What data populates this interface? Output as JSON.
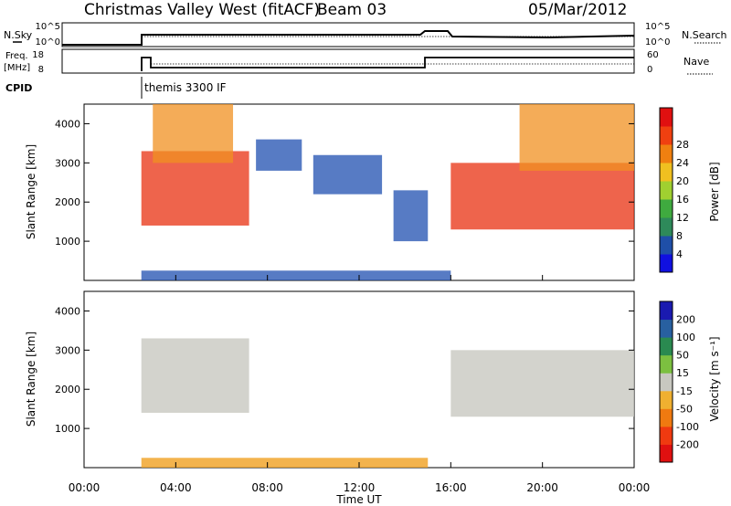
{
  "header": {
    "station_title": "Christmas Valley West (fitACF)",
    "beam": "Beam 03",
    "date": "05/Mar/2012"
  },
  "strips": {
    "nsky_label": "N.Sky",
    "nsearch_label": "N.Search",
    "nsky_top_tick": "10^5",
    "nsky_bottom_tick": "10^0",
    "freq_label": "Freq.",
    "freq_unit": "[MHz]",
    "freq_top_tick": "18",
    "freq_bottom_tick": "8",
    "nave_label": "Nave",
    "nave_top_tick": "60",
    "nave_bottom_tick": "0",
    "cpid_label": "CPID",
    "cpid_mode": "themis 3300 IF"
  },
  "power_panel": {
    "ylabel": "Slant Range [km]",
    "yticks": [
      "1000",
      "2000",
      "3000",
      "4000"
    ],
    "colorbar_title": "Power [dB]",
    "colorbar_ticks": [
      "4",
      "8",
      "12",
      "16",
      "20",
      "24",
      "28"
    ],
    "colorbar_colors": [
      "#1010e0",
      "#1f4fa8",
      "#2e8a5a",
      "#3faa3f",
      "#a0d030",
      "#f0c020",
      "#f08010",
      "#f04010",
      "#e01010"
    ]
  },
  "velocity_panel": {
    "ylabel": "Slant Range [km]",
    "yticks": [
      "1000",
      "2000",
      "3000",
      "4000"
    ],
    "colorbar_title": "Velocity [m s⁻¹]",
    "colorbar_ticks": [
      "200",
      "100",
      "50",
      "15",
      "-15",
      "-50",
      "-100",
      "-200"
    ],
    "colorbar_colors": [
      "#1a1ab0",
      "#2860a0",
      "#2a8a50",
      "#7cc040",
      "#c8c8c0",
      "#f0b030",
      "#f07a10",
      "#f03a10",
      "#e01010"
    ]
  },
  "xaxis": {
    "label": "Time UT",
    "ticks": [
      "00:00",
      "04:00",
      "08:00",
      "12:00",
      "16:00",
      "20:00",
      "00:00"
    ]
  },
  "chart_data": {
    "type": "heatmap",
    "x_unit": "hours UT",
    "xlim": [
      0,
      24
    ],
    "ylim_km": [
      0,
      4500
    ],
    "power_patches": [
      {
        "t": [
          2.5,
          7.2
        ],
        "r": [
          1400,
          3300
        ],
        "level": "high"
      },
      {
        "t": [
          3.0,
          6.5
        ],
        "r": [
          3000,
          4500
        ],
        "level": "mid"
      },
      {
        "t": [
          7.5,
          9.5
        ],
        "r": [
          2800,
          3600
        ],
        "level": "low"
      },
      {
        "t": [
          10.0,
          13.0
        ],
        "r": [
          2200,
          3200
        ],
        "level": "low"
      },
      {
        "t": [
          13.5,
          15.0
        ],
        "r": [
          1000,
          2300
        ],
        "level": "low"
      },
      {
        "t": [
          16.0,
          24.0
        ],
        "r": [
          1300,
          3000
        ],
        "level": "high"
      },
      {
        "t": [
          19.0,
          24.0
        ],
        "r": [
          2800,
          4500
        ],
        "level": "mid"
      },
      {
        "t": [
          2.5,
          16.0
        ],
        "r": [
          0,
          250
        ],
        "level": "low"
      }
    ],
    "velocity_patches": [
      {
        "t": [
          2.5,
          7.2
        ],
        "r": [
          1400,
          3300
        ],
        "class": "near-zero"
      },
      {
        "t": [
          16.0,
          24.0
        ],
        "r": [
          1300,
          3000
        ],
        "class": "near-zero"
      },
      {
        "t": [
          2.5,
          15.0
        ],
        "r": [
          0,
          250
        ],
        "class": "negative"
      }
    ],
    "cpid_step_time": 2.5,
    "nave_step_time": 15.0
  }
}
